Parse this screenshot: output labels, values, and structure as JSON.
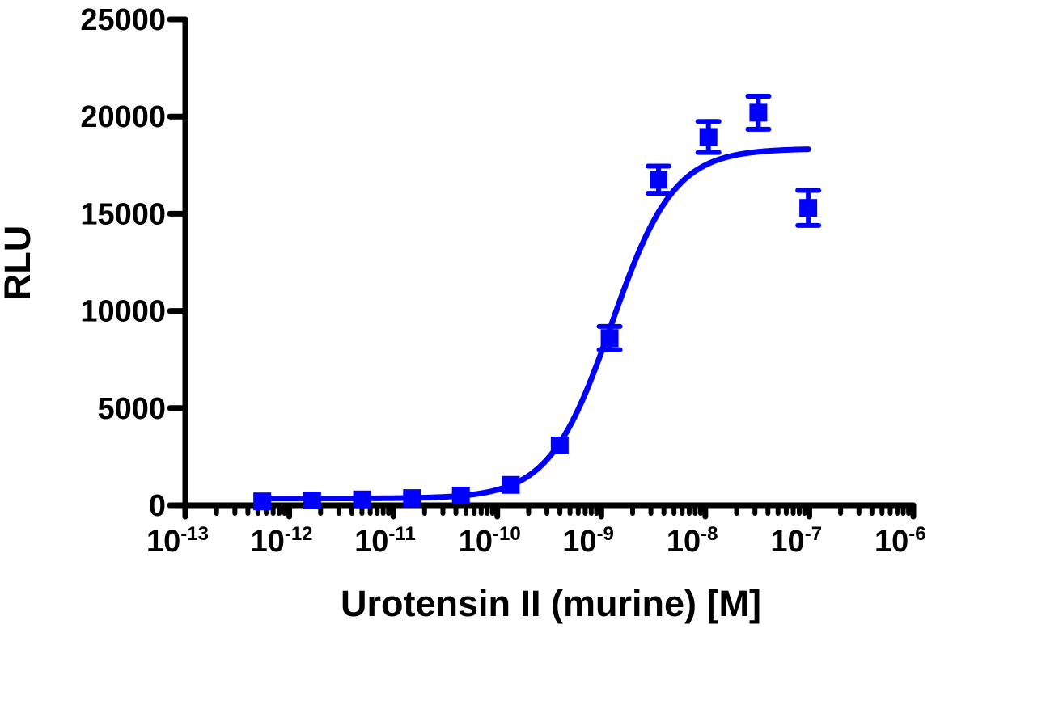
{
  "chart_data": {
    "type": "scatter",
    "title": "",
    "xlabel": "Urotensin II (murine) [M]",
    "ylabel": "RLU",
    "xscale": "log",
    "xlim": [
      1e-13,
      1e-06
    ],
    "ylim": [
      0,
      25000
    ],
    "grid": false,
    "legend": null,
    "color": "#0000FF",
    "y_ticks": [
      0,
      5000,
      10000,
      15000,
      20000,
      25000
    ],
    "y_tick_labels": [
      "0",
      "5000",
      "10000",
      "15000",
      "20000",
      "25000"
    ],
    "x_ticks": [
      -13,
      -12,
      -11,
      -10,
      -9,
      -8,
      -7,
      -6
    ],
    "x_tick_labels": [
      {
        "base": "10",
        "exp": "-13"
      },
      {
        "base": "10",
        "exp": "-12"
      },
      {
        "base": "10",
        "exp": "-11"
      },
      {
        "base": "10",
        "exp": "-10"
      },
      {
        "base": "10",
        "exp": "-9"
      },
      {
        "base": "10",
        "exp": "-8"
      },
      {
        "base": "10",
        "exp": "-7"
      },
      {
        "base": "10",
        "exp": "-6"
      }
    ],
    "series": [
      {
        "name": "Urotensin II (murine)",
        "marker": "square",
        "log10_x": [
          -12.26,
          -11.78,
          -11.3,
          -10.82,
          -10.35,
          -9.87,
          -9.4,
          -8.92,
          -8.45,
          -7.97,
          -7.49,
          -7.01
        ],
        "x": [
          5.5e-13,
          1.65e-12,
          5e-12,
          1.5e-11,
          4.5e-11,
          1.35e-10,
          4e-10,
          1.2e-09,
          3.6e-09,
          1.07e-08,
          3.2e-08,
          9.8e-08
        ],
        "y": [
          200,
          250,
          300,
          370,
          500,
          1050,
          3080,
          8600,
          16750,
          18950,
          20200,
          15300
        ],
        "y_err": [
          0,
          0,
          0,
          0,
          0,
          0,
          0,
          600,
          700,
          800,
          850,
          900
        ]
      }
    ],
    "fit": {
      "type": "four-parameter logistic",
      "bottom": 350,
      "top": 18350,
      "log_ec50": -8.9,
      "hill_slope": 1.45,
      "x_range_log10": [
        -12.26,
        -7.01
      ]
    }
  }
}
